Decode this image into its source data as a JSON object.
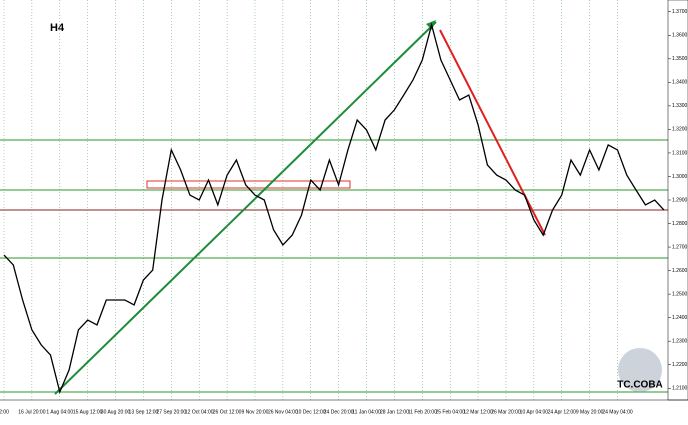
{
  "chart_data": {
    "type": "line",
    "title": "H4",
    "watermark": "TC.COBA",
    "categories": [
      "2:00",
      null,
      null,
      "16 Jul 20:00",
      null,
      null,
      "1 Aug 04:00",
      null,
      null,
      "15 Aug 12:00",
      null,
      null,
      "30 Aug 20:00",
      null,
      null,
      "13 Sep 12:00",
      null,
      null,
      "27 Sep 20:00",
      null,
      null,
      "12 Oct 04:00",
      null,
      null,
      "26 Oct 12:00",
      null,
      null,
      "9 Nov 20:00",
      null,
      null,
      "26 Nov 04:00",
      null,
      null,
      "10 Dec 12:00",
      null,
      null,
      "24 Dec 20:00",
      null,
      null,
      "11 Jan 04:00",
      null,
      null,
      "28 Jan 12:00",
      null,
      null,
      "11 Feb 20:00",
      null,
      null,
      "25 Feb 04:00",
      null,
      null,
      "12 Mar 12:00",
      null,
      null,
      "26 Mar 20:00",
      null,
      null,
      "10 Apr 04:00",
      null,
      null,
      "24 Apr 12:00",
      null,
      null,
      "9 May 20:00",
      null,
      null,
      "24 May 04:00",
      null,
      null,
      null,
      null,
      null
    ],
    "series": [
      {
        "color": "#000000",
        "values": [
          1.2666,
          1.2624,
          1.2475,
          1.2348,
          1.2284,
          1.2241,
          1.2084,
          1.2178,
          1.2348,
          1.239,
          1.2369,
          1.2475,
          1.2475,
          1.2475,
          1.2454,
          1.256,
          1.2602,
          1.29,
          1.3113,
          1.3028,
          1.2921,
          1.29,
          1.2985,
          1.2879,
          1.3006,
          1.307,
          1.2964,
          1.2921,
          1.29,
          1.2773,
          1.2709,
          1.2751,
          1.2836,
          1.2985,
          1.2942,
          1.307,
          1.2964,
          1.3113,
          1.324,
          1.3198,
          1.3113,
          1.324,
          1.3283,
          1.3346,
          1.341,
          1.3495,
          1.3644,
          1.3495,
          1.341,
          1.3325,
          1.3346,
          1.3219,
          1.3049,
          1.3006,
          1.2985,
          1.2942,
          1.2921,
          1.2815,
          1.2751,
          1.2857,
          1.2921,
          1.307,
          1.3006,
          1.3113,
          1.3028,
          1.3134,
          1.3113,
          1.3006,
          1.2942,
          1.2879,
          1.29,
          1.2857
        ]
      }
    ],
    "ylim": [
      1.205,
      1.375
    ],
    "yticks": [
      {
        "value": 1.21,
        "label": "1.2100"
      },
      {
        "value": 1.22,
        "label": "1.2200"
      },
      {
        "value": 1.23,
        "label": "1.2300"
      },
      {
        "value": 1.24,
        "label": "1.2400"
      },
      {
        "value": 1.25,
        "label": "1.2500"
      },
      {
        "value": 1.26,
        "label": "1.2600"
      },
      {
        "value": 1.27,
        "label": "1.2700"
      },
      {
        "value": 1.28,
        "label": "1.2800"
      },
      {
        "value": 1.29,
        "label": "1.2900"
      },
      {
        "value": 1.3,
        "label": "1.3000"
      },
      {
        "value": 1.31,
        "label": "1.3100"
      },
      {
        "value": 1.32,
        "label": "1.3200"
      },
      {
        "value": 1.33,
        "label": "1.3300"
      },
      {
        "value": 1.34,
        "label": "1.3400"
      },
      {
        "value": 1.35,
        "label": "1.3500"
      },
      {
        "value": 1.36,
        "label": "1.3600"
      },
      {
        "value": 1.37,
        "label": "1.3700"
      }
    ],
    "grid": true
  }
}
